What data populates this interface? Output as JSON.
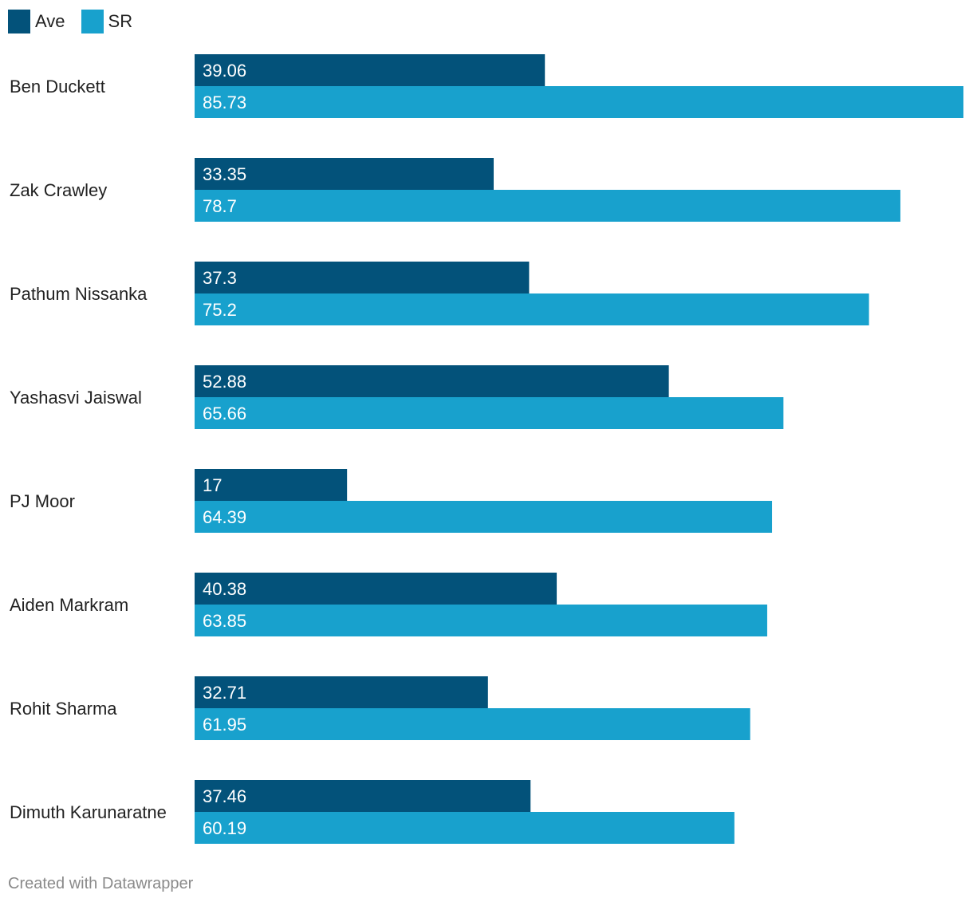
{
  "chart_data": {
    "type": "bar",
    "orientation": "horizontal",
    "categories": [
      "Ben Duckett",
      "Zak Crawley",
      "Pathum Nissanka",
      "Yashasvi Jaiswal",
      "PJ Moor",
      "Aiden Markram",
      "Rohit Sharma",
      "Dimuth Karunaratne"
    ],
    "series": [
      {
        "name": "Ave",
        "color": "#03527a",
        "values": [
          39.06,
          33.35,
          37.3,
          52.88,
          17,
          40.38,
          32.71,
          37.46
        ],
        "labels": [
          "39.06",
          "33.35",
          "37.3",
          "52.88",
          "17",
          "40.38",
          "32.71",
          "37.46"
        ]
      },
      {
        "name": "SR",
        "color": "#18a1cd",
        "values": [
          85.73,
          78.7,
          75.2,
          65.66,
          64.39,
          63.85,
          61.95,
          60.19
        ],
        "labels": [
          "85.73",
          "78.7",
          "75.2",
          "65.66",
          "64.39",
          "63.85",
          "61.95",
          "60.19"
        ]
      }
    ],
    "xlim": [
      0,
      85.73
    ],
    "legend": "top-left",
    "grid": false
  },
  "footer": {
    "credit": "Created with Datawrapper"
  }
}
